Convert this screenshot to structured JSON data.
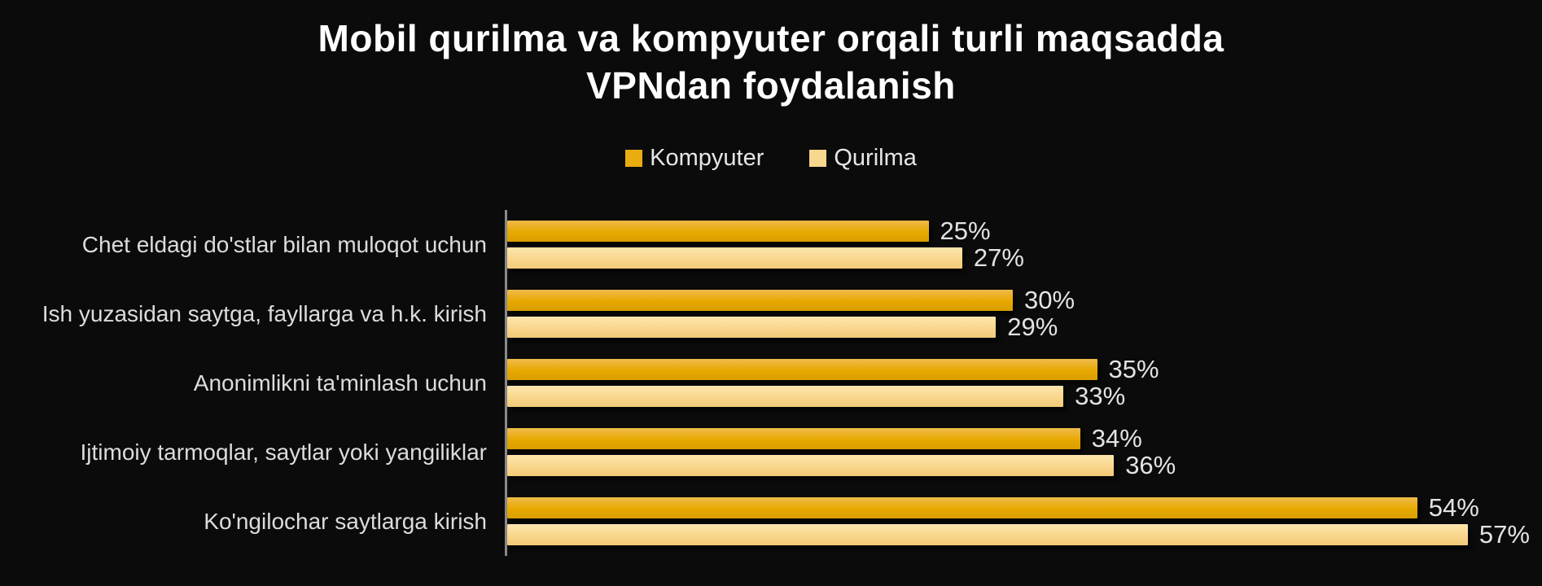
{
  "page": {
    "background_color": "#0B0B0B"
  },
  "title": {
    "text": "Mobil qurilma va kompyuter orqali turli maqsadda VPNdan foydalanish",
    "lines": [
      "Mobil qurilma va kompyuter orqali turli maqsadda",
      "VPNdan foydalanish"
    ],
    "color": "#FFFFFF"
  },
  "legend": {
    "items": [
      {
        "label": "Kompyuter",
        "swatch_color": "#EAAC10"
      },
      {
        "label": "Qurilma",
        "swatch_color": "#F8D78E"
      }
    ]
  },
  "chart_data": {
    "type": "bar",
    "orientation": "horizontal",
    "title": "Mobil qurilma va kompyuter orqali turli maqsadda VPNdan foydalanish",
    "categories": [
      "Chet eldagi do'stlar bilan muloqot uchun",
      "Ish yuzasidan saytga, fayllarga va h.k. kirish",
      "Anonimlikni ta'minlash uchun",
      "Ijtimoiy tarmoqlar, saytlar yoki yangiliklar",
      "Ko'ngilochar saytlarga kirish"
    ],
    "series": [
      {
        "name": "Kompyuter",
        "color": "#EAAC10",
        "gradient": [
          "#F0BB4C",
          "#E7A800",
          "#D99E00"
        ],
        "values": [
          25,
          30,
          35,
          34,
          54
        ]
      },
      {
        "name": "Qurilma",
        "color": "#F8D78E",
        "gradient": [
          "#FDE6AE",
          "#F9D68C",
          "#F2CA78"
        ],
        "values": [
          27,
          29,
          33,
          36,
          57
        ]
      }
    ],
    "value_suffix": "%",
    "xlim": [
      0,
      60
    ],
    "grid": false,
    "legend_position": "top",
    "axis_line_color": "#8A8A8A",
    "category_label_color": "#DCDCDC",
    "value_label_color": "#E3E3E3",
    "background": "#0B0B0B"
  }
}
